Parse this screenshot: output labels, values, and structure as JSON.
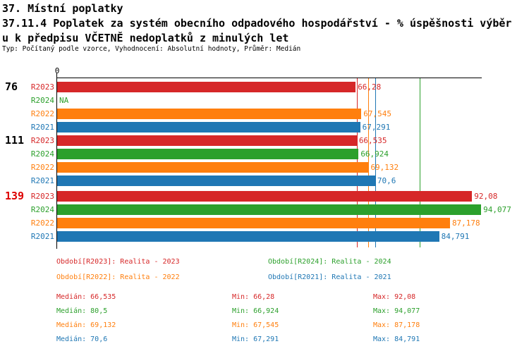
{
  "header": {
    "title": "37. Místní poplatky",
    "subtitle_line1": "37.11.4 Poplatek za systém obecního odpadového hospodářství  - % úspěšnosti výběr",
    "subtitle_line2": "u k předpisu VČETNĚ nedoplatků z minulých let",
    "meta": "Typ: Počítaný podle vzorce, Vyhodnocení: Absolutní hodnoty, Průměr: Medián"
  },
  "colors": {
    "R2023": "#d62728",
    "R2024": "#2ca02c",
    "R2022": "#ff7f0e",
    "R2021": "#1f77b4",
    "axis": "#000000",
    "group_label": "#000000",
    "group_label_highlight": "#dd0000",
    "background": "#ffffff"
  },
  "chart_data": {
    "type": "bar",
    "orientation": "horizontal",
    "value_unit": "%",
    "title": "37.11.4 Poplatek za systém obecního odpadového hospodářství - % úspěšnosti výběru k předpisu VČETNĚ nedoplatků z minulých let",
    "axis": {
      "origin_label": "0",
      "min": 0,
      "max": 94.077,
      "grid": false
    },
    "series_order": [
      "R2023",
      "R2024",
      "R2022",
      "R2021"
    ],
    "groups": [
      {
        "label": "76",
        "highlighted": false,
        "bars": [
          {
            "series": "R2023",
            "value": 66.28,
            "display": "66,28"
          },
          {
            "series": "R2024",
            "value": null,
            "display": "NA"
          },
          {
            "series": "R2022",
            "value": 67.545,
            "display": "67,545"
          },
          {
            "series": "R2021",
            "value": 67.291,
            "display": "67,291"
          }
        ]
      },
      {
        "label": "111",
        "highlighted": false,
        "bars": [
          {
            "series": "R2023",
            "value": 66.535,
            "display": "66,535"
          },
          {
            "series": "R2024",
            "value": 66.924,
            "display": "66,924"
          },
          {
            "series": "R2022",
            "value": 69.132,
            "display": "69,132"
          },
          {
            "series": "R2021",
            "value": 70.6,
            "display": "70,6"
          }
        ]
      },
      {
        "label": "139",
        "highlighted": true,
        "bars": [
          {
            "series": "R2023",
            "value": 92.08,
            "display": "92,08"
          },
          {
            "series": "R2024",
            "value": 94.077,
            "display": "94,077"
          },
          {
            "series": "R2022",
            "value": 87.178,
            "display": "87,178"
          },
          {
            "series": "R2021",
            "value": 84.791,
            "display": "84,791"
          }
        ]
      }
    ],
    "median_lines": [
      {
        "series": "R2023",
        "value": 66.535
      },
      {
        "series": "R2022",
        "value": 69.132
      },
      {
        "series": "R2021",
        "value": 70.6
      },
      {
        "series": "R2024",
        "value": 80.5
      }
    ],
    "legend": [
      {
        "series": "R2023",
        "text": "Období[R2023]: Realita - 2023"
      },
      {
        "series": "R2024",
        "text": "Období[R2024]: Realita - 2024"
      },
      {
        "series": "R2022",
        "text": "Období[R2022]: Realita - 2022"
      },
      {
        "series": "R2021",
        "text": "Období[R2021]: Realita - 2021"
      }
    ],
    "stats_labels": {
      "median": "Medián",
      "min": "Min",
      "max": "Max"
    },
    "stats": [
      {
        "series": "R2023",
        "median": "66,535",
        "min": "66,28",
        "max": "92,08"
      },
      {
        "series": "R2024",
        "median": "80,5",
        "min": "66,924",
        "max": "94,077"
      },
      {
        "series": "R2022",
        "median": "69,132",
        "min": "67,545",
        "max": "87,178"
      },
      {
        "series": "R2021",
        "median": "70,6",
        "min": "67,291",
        "max": "84,791"
      }
    ]
  }
}
